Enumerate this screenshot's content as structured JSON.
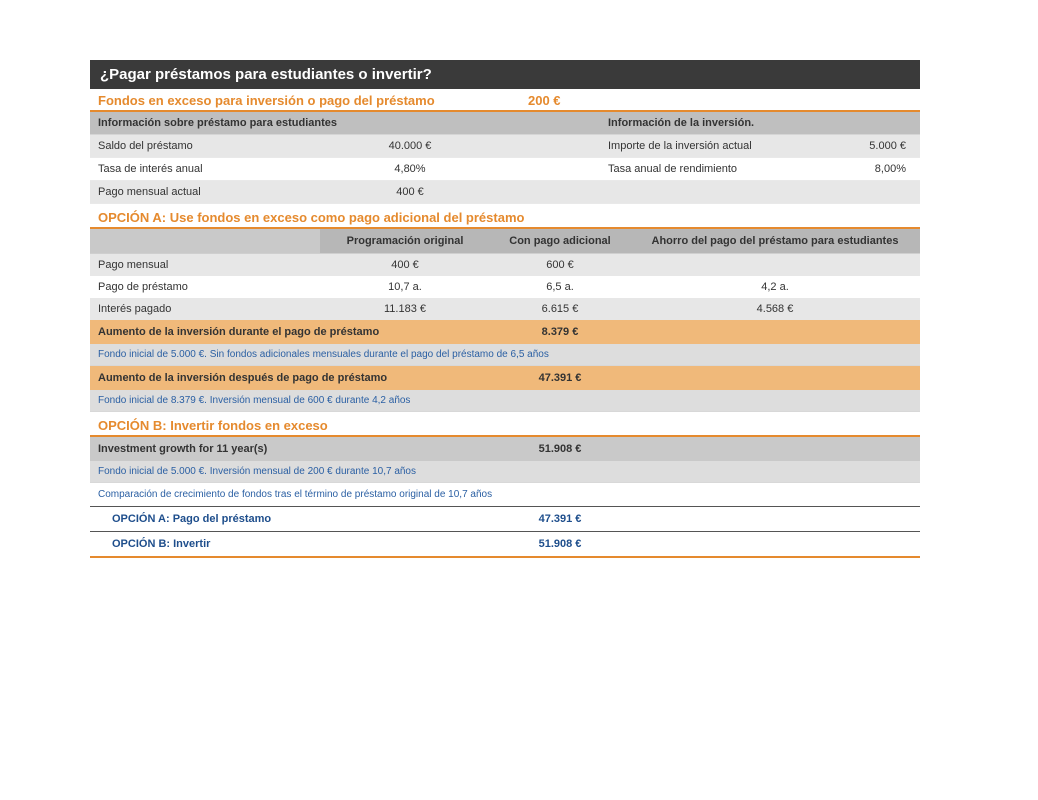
{
  "colors": {
    "title_bg": "#3a3a3a",
    "accent": "#e58a2e",
    "band": "#f0b97a",
    "grey_hdr": "#bfbfbf",
    "grey_row": "#e7e7e7",
    "blue_text": "#1e4e8c"
  },
  "title": "¿Pagar préstamos para estudiantes o invertir?",
  "excess": {
    "label": "Fondos en exceso para inversión o pago del préstamo",
    "value": "200 €"
  },
  "info": {
    "loan_header": "Información sobre préstamo para estudiantes",
    "invest_header": "Información de la inversión.",
    "rows": [
      {
        "l_label": "Saldo del préstamo",
        "l_val": "40.000 €",
        "r_label": "Importe de la inversión actual",
        "r_val": "5.000 €",
        "shade": "lt"
      },
      {
        "l_label": "Tasa de interés anual",
        "l_val": "4,80%",
        "r_label": "Tasa anual de rendimiento",
        "r_val": "8,00%",
        "shade": "wh"
      },
      {
        "l_label": "Pago mensual actual",
        "l_val": "400 €",
        "r_label": "",
        "r_val": "",
        "shade": "lt"
      }
    ]
  },
  "optionA": {
    "title": "OPCIÓN A: Use fondos en exceso como pago adicional del préstamo",
    "columns": [
      "",
      "Programación original",
      "Con pago adicional",
      "Ahorro del pago del préstamo para estudiantes"
    ],
    "rows": [
      {
        "label": "Pago mensual",
        "c1": "400 €",
        "c2": "600 €",
        "c3": "",
        "shade": "lt"
      },
      {
        "label": "Pago de préstamo",
        "c1": "10,7 a.",
        "c2": "6,5 a.",
        "c3": "4,2 a.",
        "shade": "wh"
      },
      {
        "label": "Interés pagado",
        "c1": "11.183 €",
        "c2": "6.615 €",
        "c3": "4.568 €",
        "shade": "lt"
      }
    ],
    "band1": {
      "label": "Aumento de la inversión durante el pago de préstamo",
      "value": "8.379 €"
    },
    "note1": "Fondo inicial de 5.000 €. Sin fondos adicionales mensuales durante el pago del préstamo de 6,5 años",
    "band2": {
      "label": "Aumento de la inversión después de pago de préstamo",
      "value": "47.391 €"
    },
    "note2": "Fondo inicial de 8.379 €. Inversión mensual de 600 € durante 4,2 años"
  },
  "optionB": {
    "title": "OPCIÓN B: Invertir fondos en exceso",
    "row": {
      "label": "Investment growth for 11 year(s)",
      "value": "51.908 €"
    },
    "note": "Fondo inicial de 5.000 €. Inversión mensual de 200 € durante 10,7 años"
  },
  "comparison": {
    "intro": "Comparación de crecimiento de fondos tras el término de préstamo original de 10,7 años",
    "rows": [
      {
        "label": "OPCIÓN A: Pago del préstamo",
        "value": "47.391 €"
      },
      {
        "label": "OPCIÓN B: Invertir",
        "value": "51.908 €"
      }
    ]
  }
}
